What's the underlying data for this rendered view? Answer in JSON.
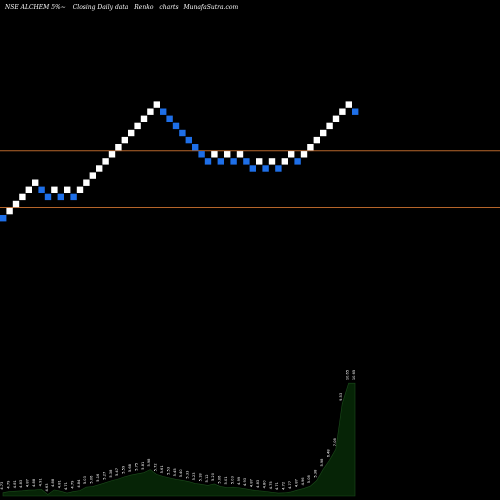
{
  "header": {
    "symbol": "NSE ALCHEM 5%~",
    "kind": "Closing Daily data",
    "type": "Renko",
    "unit": "charts",
    "brand": "MunafaSutra.com"
  },
  "colors": {
    "background": "#000000",
    "up_brick": "#ffffff",
    "down_brick": "#1e6fe8",
    "ref_line": "#b5652a",
    "volume_fill": "#062406",
    "volume_stroke": "#1a4a1a",
    "volume_label": "#ffffff"
  },
  "chart_data": {
    "type": "renko",
    "brick_directions": [
      -1,
      1,
      1,
      1,
      1,
      1,
      -1,
      -1,
      1,
      -1,
      1,
      -1,
      1,
      1,
      1,
      1,
      1,
      1,
      1,
      1,
      1,
      1,
      1,
      1,
      1,
      -1,
      -1,
      -1,
      -1,
      -1,
      -1,
      -1,
      -1,
      1,
      -1,
      1,
      -1,
      1,
      -1,
      -1,
      1,
      -1,
      1,
      -1,
      1,
      1,
      -1,
      1,
      1,
      1,
      1,
      1,
      1,
      1,
      1,
      -1
    ],
    "reference_levels_brick_units": [
      9.5,
      1.5
    ],
    "volume_labels": [
      "4.73",
      "4.79",
      "4.81",
      "4.83",
      "4.87",
      "4.88",
      "4.91",
      "4.63",
      "4.88",
      "4.81",
      "4.71",
      "4.79",
      "4.84",
      "5.03",
      "5.06",
      "5.16",
      "5.27",
      "5.38",
      "5.47",
      "5.59",
      "5.68",
      "5.75",
      "5.81",
      "5.98",
      "5.72",
      "5.61",
      "5.53",
      "5.45",
      "5.40",
      "5.33",
      "5.23",
      "5.18",
      "5.12",
      "5.20",
      "5.06",
      "5.01",
      "5.03",
      "4.99",
      "4.93",
      "4.87",
      "4.83",
      "4.80",
      "4.75",
      "4.71",
      "4.72",
      "4.77",
      "4.87",
      "4.96",
      "5.08",
      "5.38",
      "5.98",
      "6.48",
      "7.08",
      "9.53",
      "10.65",
      "10.65"
    ],
    "volume_values": [
      4.73,
      4.79,
      4.81,
      4.83,
      4.87,
      4.88,
      4.91,
      4.63,
      4.88,
      4.81,
      4.71,
      4.79,
      4.84,
      5.03,
      5.06,
      5.16,
      5.27,
      5.38,
      5.47,
      5.59,
      5.68,
      5.75,
      5.81,
      5.98,
      5.72,
      5.61,
      5.53,
      5.45,
      5.4,
      5.33,
      5.23,
      5.18,
      5.12,
      5.2,
      5.06,
      5.01,
      5.03,
      4.99,
      4.93,
      4.87,
      4.83,
      4.8,
      4.75,
      4.71,
      4.72,
      4.77,
      4.87,
      4.96,
      5.08,
      5.38,
      5.98,
      6.48,
      7.08,
      9.53,
      10.65,
      10.65
    ]
  }
}
